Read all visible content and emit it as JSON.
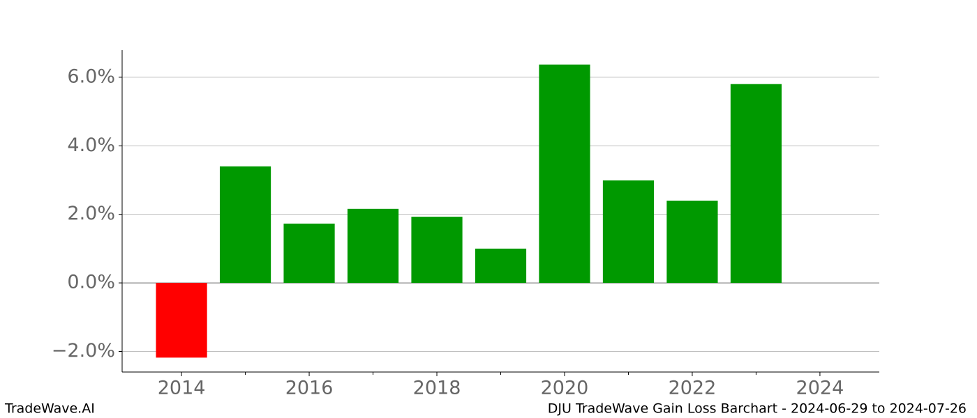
{
  "chart_data": {
    "type": "bar",
    "x": [
      2014,
      2015,
      2016,
      2017,
      2018,
      2019,
      2020,
      2021,
      2022,
      2023
    ],
    "values": [
      -2.18,
      3.4,
      1.73,
      2.16,
      1.93,
      1.0,
      6.37,
      2.99,
      2.4,
      5.8
    ],
    "positive_color": "#009900",
    "negative_color": "#ff0000",
    "xlim": [
      2013.07,
      2024.93
    ],
    "xticks": [
      2014,
      2016,
      2018,
      2020,
      2022,
      2024
    ],
    "xminorticks": [
      2015,
      2017,
      2019,
      2021,
      2023
    ],
    "ylim": [
      -2.6,
      6.79
    ],
    "yticks": [
      {
        "value": -2,
        "label": "−2.0%"
      },
      {
        "value": 0,
        "label": "0.0%"
      },
      {
        "value": 2,
        "label": "2.0%"
      },
      {
        "value": 4,
        "label": "4.0%"
      },
      {
        "value": 6,
        "label": "6.0%"
      }
    ],
    "grid": true,
    "footer_left": "TradeWave.AI",
    "footer_right": "DJU TradeWave Gain Loss Barchart - 2024-06-29 to 2024-07-26"
  }
}
